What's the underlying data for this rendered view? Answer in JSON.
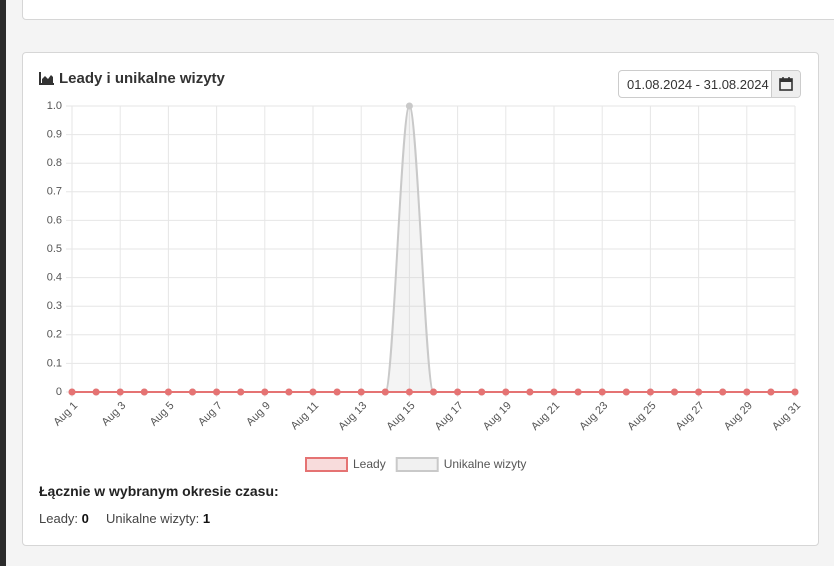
{
  "header": {
    "title": "Leady i unikalne wizyty",
    "date_range": "01.08.2024 - 31.08.2024"
  },
  "chart_data": {
    "type": "line",
    "categories": [
      "Aug 1",
      null,
      "Aug 3",
      null,
      "Aug 5",
      null,
      "Aug 7",
      null,
      "Aug 9",
      null,
      "Aug 11",
      null,
      "Aug 13",
      null,
      "Aug 15",
      null,
      "Aug 17",
      null,
      "Aug 19",
      null,
      "Aug 21",
      null,
      "Aug 23",
      null,
      "Aug 25",
      null,
      "Aug 27",
      null,
      "Aug 29",
      null,
      "Aug 31"
    ],
    "series": [
      {
        "name": "Leady",
        "color": "#e57373",
        "values": [
          0,
          0,
          0,
          0,
          0,
          0,
          0,
          0,
          0,
          0,
          0,
          0,
          0,
          0,
          0,
          0,
          0,
          0,
          0,
          0,
          0,
          0,
          0,
          0,
          0,
          0,
          0,
          0,
          0,
          0,
          0
        ]
      },
      {
        "name": "Unikalne wizyty",
        "color": "#c9c9c9",
        "values": [
          0,
          0,
          0,
          0,
          0,
          0,
          0,
          0,
          0,
          0,
          0,
          0,
          0,
          0,
          1,
          0,
          0,
          0,
          0,
          0,
          0,
          0,
          0,
          0,
          0,
          0,
          0,
          0,
          0,
          0,
          0
        ]
      }
    ],
    "ylim": [
      0,
      1
    ],
    "yticks": [
      0,
      0.1,
      0.2,
      0.3,
      0.4,
      0.5,
      0.6,
      0.7,
      0.8,
      0.9,
      {
        "value": 1,
        "label": "1.0"
      }
    ],
    "grid": true,
    "legend": "bottom"
  },
  "summary": {
    "title": "Łącznie w wybranym okresie czasu:",
    "leads_label": "Leady:",
    "leads_value": 0,
    "visits_label": "Unikalne wizyty:",
    "visits_value": 1
  }
}
